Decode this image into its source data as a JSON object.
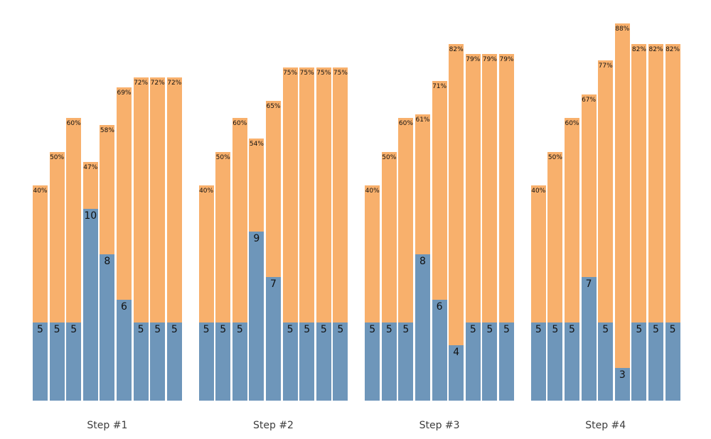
{
  "chart_data": {
    "type": "bar",
    "variant": "grouped-stacked",
    "title": "",
    "xlabel": "",
    "ylabel": "",
    "grid": false,
    "legend": false,
    "axes_visible": false,
    "colors": {
      "blue_segment": "#6E96BA",
      "orange_segment": "#F8B06C",
      "value_label_text": "#111111",
      "percent_label_text": "#111111",
      "group_label_text": "#3D3D3D",
      "background": "#FFFFFF"
    },
    "groups": [
      {
        "label": "Step #1",
        "bars": [
          {
            "value": "5",
            "percent": "40%"
          },
          {
            "value": "5",
            "percent": "50%"
          },
          {
            "value": "5",
            "percent": "60%"
          },
          {
            "value": "10",
            "percent": "47%"
          },
          {
            "value": "8",
            "percent": "58%"
          },
          {
            "value": "6",
            "percent": "69%"
          },
          {
            "value": "5",
            "percent": "72%"
          },
          {
            "value": "5",
            "percent": "72%"
          },
          {
            "value": "5",
            "percent": "72%"
          }
        ]
      },
      {
        "label": "Step #2",
        "bars": [
          {
            "value": "5",
            "percent": "40%"
          },
          {
            "value": "5",
            "percent": "50%"
          },
          {
            "value": "5",
            "percent": "60%"
          },
          {
            "value": "9",
            "percent": "54%"
          },
          {
            "value": "7",
            "percent": "65%"
          },
          {
            "value": "5",
            "percent": "75%"
          },
          {
            "value": "5",
            "percent": "75%"
          },
          {
            "value": "5",
            "percent": "75%"
          },
          {
            "value": "5",
            "percent": "75%"
          }
        ]
      },
      {
        "label": "Step #3",
        "bars": [
          {
            "value": "5",
            "percent": "40%"
          },
          {
            "value": "5",
            "percent": "50%"
          },
          {
            "value": "5",
            "percent": "60%"
          },
          {
            "value": "8",
            "percent": "61%"
          },
          {
            "value": "6",
            "percent": "71%"
          },
          {
            "value": "4",
            "percent": "82%"
          },
          {
            "value": "5",
            "percent": "79%"
          },
          {
            "value": "5",
            "percent": "79%"
          },
          {
            "value": "5",
            "percent": "79%"
          }
        ]
      },
      {
        "label": "Step #4",
        "bars": [
          {
            "value": "5",
            "percent": "40%"
          },
          {
            "value": "5",
            "percent": "50%"
          },
          {
            "value": "5",
            "percent": "60%"
          },
          {
            "value": "7",
            "percent": "67%"
          },
          {
            "value": "5",
            "percent": "77%"
          },
          {
            "value": "3",
            "percent": "88%"
          },
          {
            "value": "5",
            "percent": "82%"
          },
          {
            "value": "5",
            "percent": "82%"
          },
          {
            "value": "5",
            "percent": "82%"
          }
        ]
      }
    ]
  }
}
